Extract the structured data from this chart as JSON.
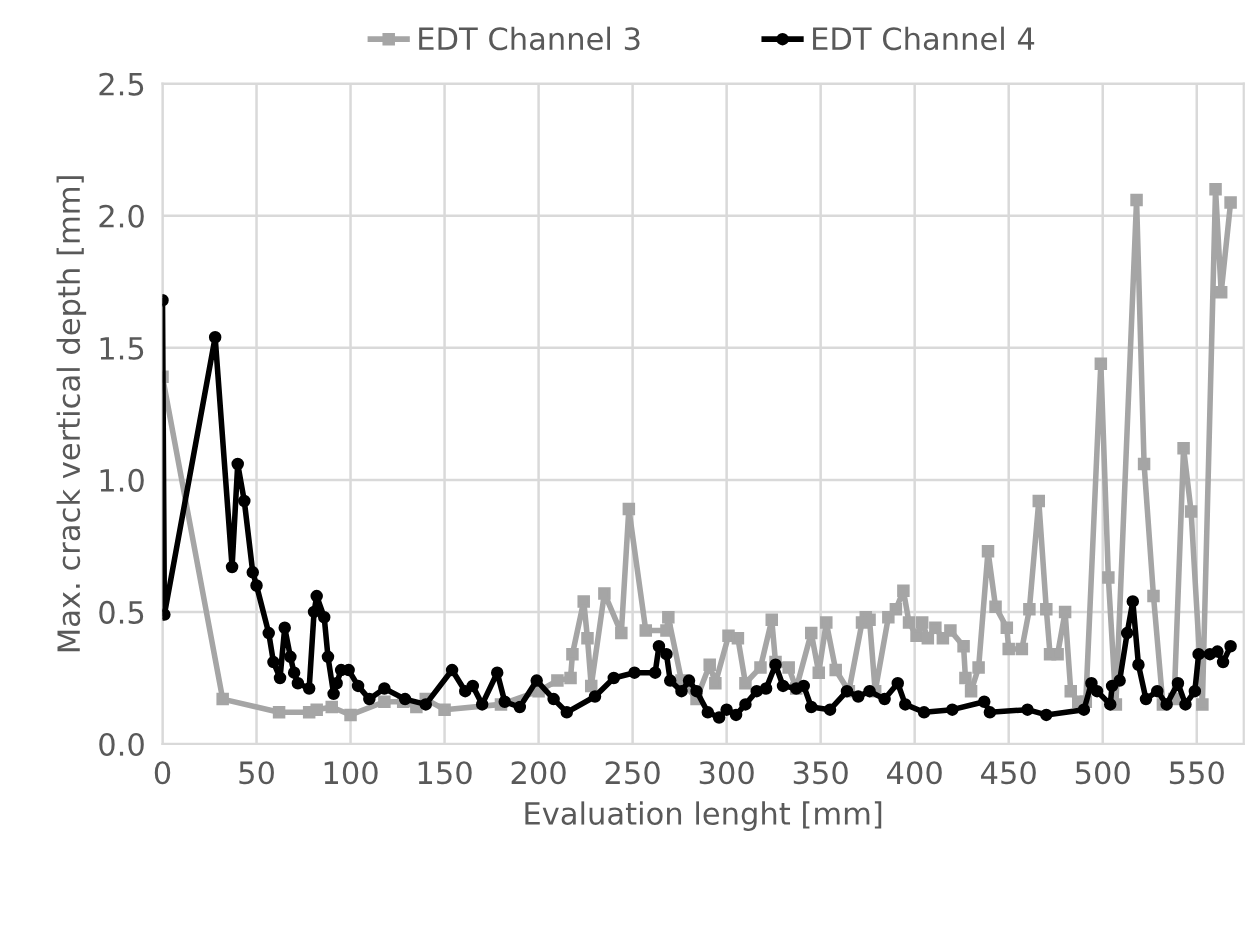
{
  "chart_data": {
    "type": "line",
    "xlabel": "Evaluation lenght [mm]",
    "ylabel": "Max. crack vertical depth [mm]",
    "xlim": [
      0,
      575
    ],
    "xticks": [
      0,
      50,
      100,
      150,
      200,
      250,
      300,
      350,
      400,
      450,
      500,
      550
    ],
    "ylim": [
      0,
      2.5
    ],
    "yticks": [
      {
        "value": 0,
        "label": "0.0"
      },
      {
        "value": 0.5,
        "label": "0.5"
      },
      {
        "value": 1,
        "label": "1.0"
      },
      {
        "value": 1.5,
        "label": "1.5"
      },
      {
        "value": 2,
        "label": "2.0"
      },
      {
        "value": 2.5,
        "label": "2.5"
      }
    ],
    "grid": true,
    "legend": "top",
    "series": [
      {
        "name": "EDT Channel 3",
        "color": "#a5a5a5",
        "marker": "square",
        "x": [
          0,
          32,
          62,
          78,
          82,
          90,
          100,
          118,
          128,
          135,
          140,
          150,
          180,
          200,
          210,
          217,
          218,
          224,
          226,
          228,
          235,
          244,
          248,
          257,
          268,
          269,
          276,
          284,
          291,
          294,
          301,
          306,
          310,
          318,
          324,
          326,
          333,
          337,
          345,
          349,
          353,
          358,
          365,
          372,
          374,
          376,
          379,
          386,
          390,
          394,
          397,
          401,
          404,
          407,
          411,
          415,
          419,
          426,
          427,
          430,
          434,
          439,
          443,
          449,
          450,
          457,
          461,
          466,
          470,
          472,
          476,
          480,
          483,
          487,
          491,
          499,
          503,
          507,
          518,
          522,
          527,
          532,
          538,
          543,
          547,
          553,
          560,
          563,
          568
        ],
        "values": [
          1.39,
          0.17,
          0.12,
          0.12,
          0.13,
          0.14,
          0.11,
          0.16,
          0.16,
          0.14,
          0.17,
          0.13,
          0.15,
          0.2,
          0.24,
          0.25,
          0.34,
          0.54,
          0.4,
          0.22,
          0.57,
          0.42,
          0.89,
          0.43,
          0.43,
          0.48,
          0.24,
          0.17,
          0.3,
          0.23,
          0.41,
          0.4,
          0.23,
          0.29,
          0.47,
          0.31,
          0.29,
          0.21,
          0.42,
          0.27,
          0.46,
          0.28,
          0.2,
          0.46,
          0.48,
          0.47,
          0.2,
          0.48,
          0.51,
          0.58,
          0.46,
          0.41,
          0.46,
          0.4,
          0.44,
          0.4,
          0.43,
          0.37,
          0.25,
          0.2,
          0.29,
          0.73,
          0.52,
          0.44,
          0.36,
          0.36,
          0.51,
          0.92,
          0.51,
          0.34,
          0.34,
          0.5,
          0.2,
          0.16,
          0.16,
          1.44,
          0.63,
          0.15,
          2.06,
          1.06,
          0.56,
          0.15,
          0.17,
          1.12,
          0.88,
          0.15,
          2.1,
          1.71,
          2.05
        ]
      },
      {
        "name": "EDT Channel 4",
        "color": "#000000",
        "marker": "circle",
        "x": [
          0,
          1,
          28,
          37,
          40,
          43.5,
          48,
          50,
          56.5,
          59,
          62.5,
          65,
          68,
          70,
          72,
          78,
          80.6,
          82,
          86,
          88,
          91,
          92.6,
          95,
          99,
          104,
          110,
          118,
          129,
          140,
          154,
          161,
          165,
          170,
          178,
          182,
          190,
          199,
          208,
          215,
          230,
          240,
          251,
          262,
          264,
          268,
          270,
          276,
          280,
          284,
          290,
          296,
          300,
          305,
          310,
          316,
          321,
          326,
          330,
          337,
          341,
          345,
          355,
          364,
          370,
          376,
          384,
          391,
          395,
          405,
          420,
          437,
          440,
          460,
          470,
          490,
          494,
          497,
          504,
          505,
          509,
          513,
          516,
          519,
          523,
          529,
          534,
          540,
          544,
          549,
          551,
          557,
          561,
          564,
          568
        ],
        "values": [
          1.68,
          0.49,
          1.54,
          0.67,
          1.06,
          0.92,
          0.65,
          0.6,
          0.42,
          0.31,
          0.25,
          0.44,
          0.33,
          0.27,
          0.23,
          0.21,
          0.5,
          0.56,
          0.48,
          0.33,
          0.19,
          0.23,
          0.28,
          0.28,
          0.22,
          0.17,
          0.21,
          0.17,
          0.15,
          0.28,
          0.2,
          0.22,
          0.15,
          0.27,
          0.16,
          0.14,
          0.24,
          0.17,
          0.12,
          0.18,
          0.25,
          0.27,
          0.27,
          0.37,
          0.34,
          0.24,
          0.2,
          0.24,
          0.2,
          0.12,
          0.1,
          0.13,
          0.11,
          0.15,
          0.2,
          0.21,
          0.3,
          0.22,
          0.21,
          0.22,
          0.14,
          0.13,
          0.2,
          0.18,
          0.2,
          0.17,
          0.23,
          0.15,
          0.12,
          0.13,
          0.16,
          0.12,
          0.13,
          0.11,
          0.13,
          0.23,
          0.2,
          0.15,
          0.22,
          0.24,
          0.42,
          0.54,
          0.3,
          0.17,
          0.2,
          0.15,
          0.23,
          0.15,
          0.2,
          0.34,
          0.34,
          0.35,
          0.31,
          0.37
        ]
      }
    ]
  }
}
